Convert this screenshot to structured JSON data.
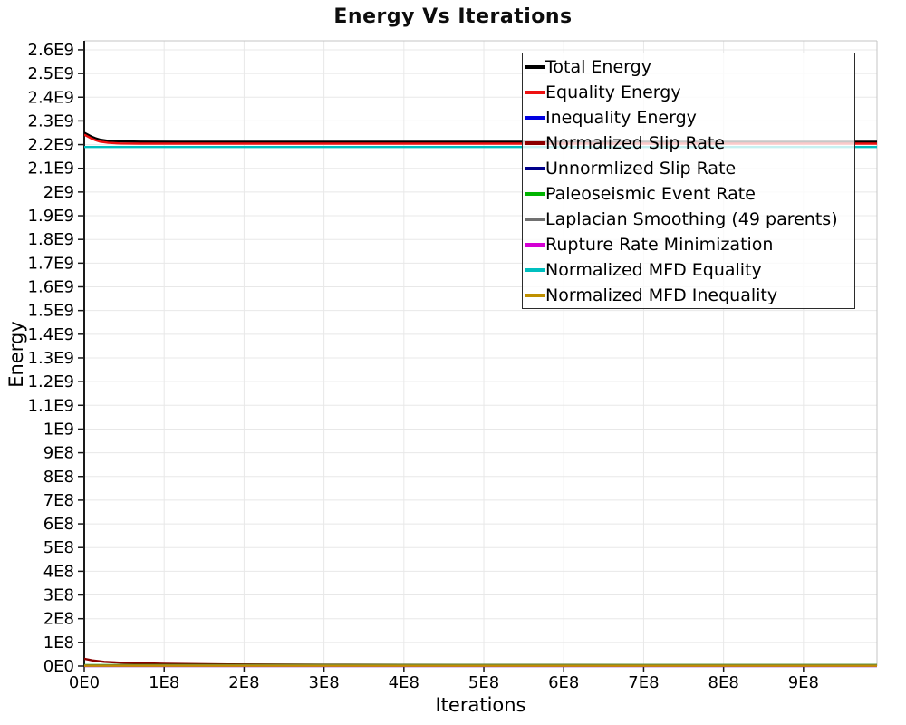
{
  "chart_data": {
    "type": "line",
    "title": "Energy Vs Iterations",
    "xlabel": "Iterations",
    "ylabel": "Energy",
    "xlim": [
      0,
      992000000
    ],
    "ylim": [
      0,
      2638000000
    ],
    "grid": true,
    "legend_position": "top-right-inner",
    "background_color": "#ffffff",
    "grid_color": "#e8e8e8",
    "frame_color": "#c4c4c4",
    "axis_color": "#1a1a1a",
    "x_ticks": [
      {
        "v": 0,
        "label": "0E0"
      },
      {
        "v": 100000000,
        "label": "1E8"
      },
      {
        "v": 200000000,
        "label": "2E8"
      },
      {
        "v": 300000000,
        "label": "3E8"
      },
      {
        "v": 400000000,
        "label": "4E8"
      },
      {
        "v": 500000000,
        "label": "5E8"
      },
      {
        "v": 600000000,
        "label": "6E8"
      },
      {
        "v": 700000000,
        "label": "7E8"
      },
      {
        "v": 800000000,
        "label": "8E8"
      },
      {
        "v": 900000000,
        "label": "9E8"
      }
    ],
    "y_ticks": [
      {
        "v": 0,
        "label": "0E0"
      },
      {
        "v": 100000000,
        "label": "1E8"
      },
      {
        "v": 200000000,
        "label": "2E8"
      },
      {
        "v": 300000000,
        "label": "3E8"
      },
      {
        "v": 400000000,
        "label": "4E8"
      },
      {
        "v": 500000000,
        "label": "5E8"
      },
      {
        "v": 600000000,
        "label": "6E8"
      },
      {
        "v": 700000000,
        "label": "7E8"
      },
      {
        "v": 800000000,
        "label": "8E8"
      },
      {
        "v": 900000000,
        "label": "9E8"
      },
      {
        "v": 1000000000,
        "label": "1E9"
      },
      {
        "v": 1100000000,
        "label": "1.1E9"
      },
      {
        "v": 1200000000,
        "label": "1.2E9"
      },
      {
        "v": 1300000000,
        "label": "1.3E9"
      },
      {
        "v": 1400000000,
        "label": "1.4E9"
      },
      {
        "v": 1500000000,
        "label": "1.5E9"
      },
      {
        "v": 1600000000,
        "label": "1.6E9"
      },
      {
        "v": 1700000000,
        "label": "1.7E9"
      },
      {
        "v": 1800000000,
        "label": "1.8E9"
      },
      {
        "v": 1900000000,
        "label": "1.9E9"
      },
      {
        "v": 2000000000,
        "label": "2E9"
      },
      {
        "v": 2100000000,
        "label": "2.1E9"
      },
      {
        "v": 2200000000,
        "label": "2.2E9"
      },
      {
        "v": 2300000000,
        "label": "2.3E9"
      },
      {
        "v": 2400000000,
        "label": "2.4E9"
      },
      {
        "v": 2500000000,
        "label": "2.5E9"
      },
      {
        "v": 2600000000,
        "label": "2.6E9"
      }
    ],
    "series": [
      {
        "name": "Total Energy",
        "color": "#000000",
        "points": [
          [
            0,
            2250000000
          ],
          [
            4000000,
            2243000000
          ],
          [
            9000000,
            2234000000
          ],
          [
            14000000,
            2227000000
          ],
          [
            20000000,
            2221000000
          ],
          [
            30000000,
            2216000000
          ],
          [
            45000000,
            2213500000
          ],
          [
            70000000,
            2212500000
          ],
          [
            120000000,
            2212000000
          ],
          [
            992000000,
            2212000000
          ]
        ]
      },
      {
        "name": "Equality Energy",
        "color": "#ee1111",
        "points": [
          [
            0,
            2242000000
          ],
          [
            4000000,
            2235000000
          ],
          [
            9000000,
            2226000000
          ],
          [
            14000000,
            2219000000
          ],
          [
            20000000,
            2212500000
          ],
          [
            30000000,
            2207500000
          ],
          [
            45000000,
            2205000000
          ],
          [
            70000000,
            2204200000
          ],
          [
            120000000,
            2204000000
          ],
          [
            992000000,
            2204000000
          ]
        ]
      },
      {
        "name": "Inequality Energy",
        "color": "#0000e1",
        "points": [
          [
            0,
            800000
          ],
          [
            992000000,
            800000
          ]
        ]
      },
      {
        "name": "Normalized Slip Rate",
        "color": "#8b0000",
        "points": [
          [
            0,
            31000000
          ],
          [
            10000000,
            24000000
          ],
          [
            25000000,
            18000000
          ],
          [
            50000000,
            13500000
          ],
          [
            100000000,
            9500000
          ],
          [
            180000000,
            7000000
          ],
          [
            300000000,
            5500000
          ],
          [
            500000000,
            4600000
          ],
          [
            700000000,
            4200000
          ],
          [
            992000000,
            4000000
          ]
        ]
      },
      {
        "name": "Unnormlized Slip Rate",
        "color": "#00008b",
        "points": [
          [
            0,
            500000
          ],
          [
            992000000,
            500000
          ]
        ]
      },
      {
        "name": "Paleoseismic Event Rate",
        "color": "#00b400",
        "points": [
          [
            0,
            4000000
          ],
          [
            992000000,
            4000000
          ]
        ]
      },
      {
        "name": "Laplacian Smoothing (49 parents)",
        "color": "#707070",
        "points": [
          [
            0,
            2500000
          ],
          [
            992000000,
            2500000
          ]
        ]
      },
      {
        "name": "Rupture Rate Minimization",
        "color": "#d400d4",
        "points": [
          [
            0,
            300000
          ],
          [
            992000000,
            300000
          ]
        ]
      },
      {
        "name": "Normalized MFD Equality",
        "color": "#00bfbf",
        "points": [
          [
            0,
            2190000000
          ],
          [
            992000000,
            2190000000
          ]
        ]
      },
      {
        "name": "Normalized MFD Inequality",
        "color": "#bf9000",
        "points": [
          [
            0,
            1200000
          ],
          [
            992000000,
            1200000
          ]
        ]
      }
    ]
  }
}
